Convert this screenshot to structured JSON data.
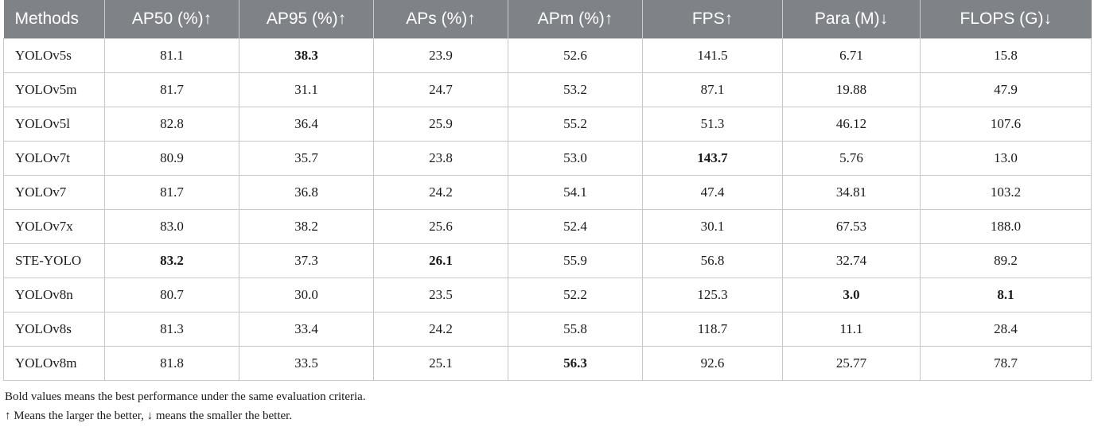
{
  "table": {
    "headers": [
      "Methods",
      "AP50 (%)↑",
      "AP95 (%)↑",
      "APs (%)↑",
      "APm (%)↑",
      "FPS↑",
      "Para (M)↓",
      "FLOPS (G)↓"
    ],
    "rows": [
      {
        "cells": [
          "YOLOv5s",
          "81.1",
          "38.3",
          "23.9",
          "52.6",
          "141.5",
          "6.71",
          "15.8"
        ],
        "bold": [
          2
        ]
      },
      {
        "cells": [
          "YOLOv5m",
          "81.7",
          "31.1",
          "24.7",
          "53.2",
          "87.1",
          "19.88",
          "47.9"
        ],
        "bold": []
      },
      {
        "cells": [
          "YOLOv5l",
          "82.8",
          "36.4",
          "25.9",
          "55.2",
          "51.3",
          "46.12",
          "107.6"
        ],
        "bold": []
      },
      {
        "cells": [
          "YOLOv7t",
          "80.9",
          "35.7",
          "23.8",
          "53.0",
          "143.7",
          "5.76",
          "13.0"
        ],
        "bold": [
          5
        ]
      },
      {
        "cells": [
          "YOLOv7",
          "81.7",
          "36.8",
          "24.2",
          "54.1",
          "47.4",
          "34.81",
          "103.2"
        ],
        "bold": []
      },
      {
        "cells": [
          "YOLOv7x",
          "83.0",
          "38.2",
          "25.6",
          "52.4",
          "30.1",
          "67.53",
          "188.0"
        ],
        "bold": []
      },
      {
        "cells": [
          "STE-YOLO",
          "83.2",
          "37.3",
          "26.1",
          "55.9",
          "56.8",
          "32.74",
          "89.2"
        ],
        "bold": [
          1,
          3
        ]
      },
      {
        "cells": [
          "YOLOv8n",
          "80.7",
          "30.0",
          "23.5",
          "52.2",
          "125.3",
          "3.0",
          "8.1"
        ],
        "bold": [
          6,
          7
        ]
      },
      {
        "cells": [
          "YOLOv8s",
          "81.3",
          "33.4",
          "24.2",
          "55.8",
          "118.7",
          "11.1",
          "28.4"
        ],
        "bold": []
      },
      {
        "cells": [
          "YOLOv8m",
          "81.8",
          "33.5",
          "25.1",
          "56.3",
          "92.6",
          "25.77",
          "78.7"
        ],
        "bold": [
          4
        ]
      }
    ]
  },
  "footnotes": [
    "Bold values means the best performance under the same evaluation criteria.",
    "↑ Means the larger the better, ↓ means the smaller the better."
  ]
}
